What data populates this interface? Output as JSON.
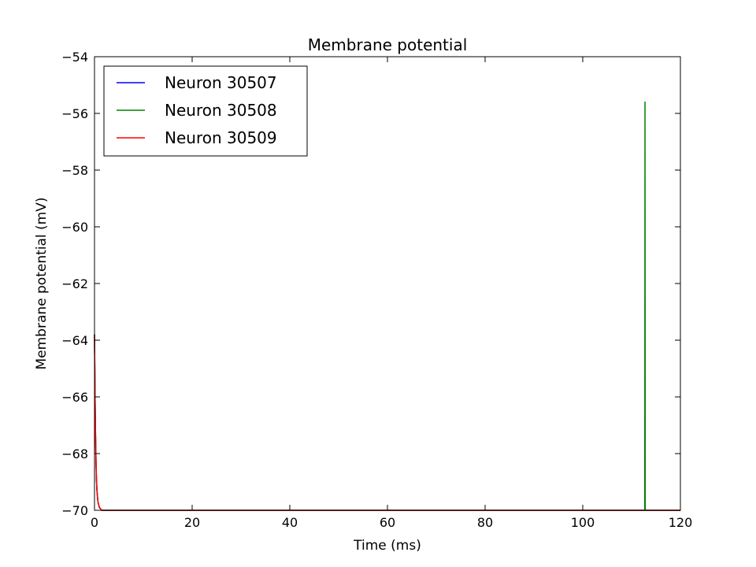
{
  "chart_data": {
    "type": "line",
    "title": "Membrane potential",
    "xlabel": "Time (ms)",
    "ylabel": "Membrane potential (mV)",
    "xlim": [
      0,
      120
    ],
    "ylim": [
      -70,
      -54
    ],
    "xticks": [
      0,
      20,
      40,
      60,
      80,
      100,
      120
    ],
    "yticks": [
      -70,
      -68,
      -66,
      -64,
      -62,
      -60,
      -58,
      -56,
      -54
    ],
    "ytick_labels": [
      "−70",
      "−68",
      "−66",
      "−64",
      "−62",
      "−60",
      "−58",
      "−56",
      "−54"
    ],
    "grid": false,
    "legend_position": "top-left",
    "series": [
      {
        "name": "Neuron 30507",
        "color": "#0000ff",
        "x": [
          0,
          0.1,
          0.2,
          0.3,
          0.4,
          0.5,
          0.7,
          1.0,
          1.5,
          2,
          3,
          120
        ],
        "y": [
          -63.8,
          -65.8,
          -67.2,
          -68.2,
          -68.9,
          -69.3,
          -69.7,
          -69.9,
          -70,
          -70,
          -70,
          -70
        ]
      },
      {
        "name": "Neuron 30508",
        "color": "#008000",
        "x": [
          0,
          0.1,
          0.2,
          0.3,
          0.4,
          0.5,
          0.7,
          1.0,
          1.5,
          2,
          3,
          112.6,
          112.7,
          112.75,
          112.8,
          120
        ],
        "y": [
          -63.8,
          -65.8,
          -67.2,
          -68.2,
          -68.9,
          -69.3,
          -69.7,
          -69.9,
          -70,
          -70,
          -70,
          -70,
          -70,
          -55.6,
          -70,
          -70
        ]
      },
      {
        "name": "Neuron 30509",
        "color": "#ff0000",
        "x": [
          0,
          0.1,
          0.2,
          0.3,
          0.4,
          0.5,
          0.7,
          1.0,
          1.5,
          2,
          3,
          120
        ],
        "y": [
          -63.8,
          -65.8,
          -67.2,
          -68.2,
          -68.9,
          -69.3,
          -69.7,
          -69.9,
          -70,
          -70,
          -70,
          -70
        ]
      }
    ]
  }
}
